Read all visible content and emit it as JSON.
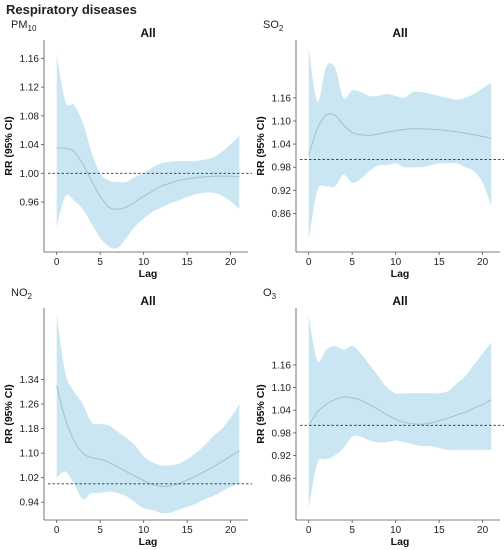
{
  "figure_title": "Respiratory diseases",
  "colors": {
    "band": "#c9e6f2",
    "line": "#9fc3d2",
    "ref": "#333333",
    "axis": "#555555"
  },
  "chart_data": [
    {
      "type": "line",
      "pollutant": "PM",
      "pollutant_sub": "10",
      "title": "All",
      "xlabel": "Lag",
      "ylabel": "RR (95% CI)",
      "xlim": [
        -1,
        22
      ],
      "ylim": [
        0.896,
        1.18
      ],
      "xticks": [
        0,
        5,
        10,
        15,
        20
      ],
      "yticks": [
        0.96,
        1.0,
        1.04,
        1.08,
        1.12,
        1.16
      ],
      "reference": 1.0,
      "x": [
        0,
        1,
        2,
        3,
        4,
        5,
        6,
        7,
        8,
        9,
        10,
        11,
        12,
        13,
        14,
        15,
        16,
        17,
        18,
        19,
        20,
        21
      ],
      "rr": [
        1.035,
        1.035,
        1.03,
        1.013,
        0.99,
        0.968,
        0.953,
        0.95,
        0.953,
        0.96,
        0.968,
        0.975,
        0.982,
        0.986,
        0.99,
        0.992,
        0.994,
        0.995,
        0.996,
        0.996,
        0.996,
        0.995
      ],
      "lower": [
        0.925,
        0.968,
        0.962,
        0.95,
        0.93,
        0.91,
        0.898,
        0.896,
        0.91,
        0.926,
        0.937,
        0.946,
        0.952,
        0.958,
        0.962,
        0.967,
        0.971,
        0.973,
        0.973,
        0.969,
        0.961,
        0.95
      ],
      "upper": [
        1.165,
        1.1,
        1.095,
        1.07,
        1.03,
        1.0,
        0.99,
        0.988,
        0.988,
        0.995,
        1.0,
        1.008,
        1.014,
        1.016,
        1.017,
        1.017,
        1.017,
        1.019,
        1.022,
        1.03,
        1.04,
        1.052
      ]
    },
    {
      "type": "line",
      "pollutant": "SO",
      "pollutant_sub": "2",
      "title": "All",
      "xlabel": "Lag",
      "ylabel": "RR (95% CI)",
      "xlim": [
        -1,
        22
      ],
      "ylim": [
        0.77,
        1.3
      ],
      "xticks": [
        0,
        5,
        10,
        15,
        20
      ],
      "yticks": [
        0.86,
        0.92,
        0.98,
        1.04,
        1.1,
        1.16
      ],
      "reference": 1.0,
      "x": [
        0,
        1,
        2,
        3,
        4,
        5,
        6,
        7,
        8,
        9,
        10,
        11,
        12,
        13,
        14,
        15,
        16,
        17,
        18,
        19,
        20,
        21
      ],
      "rr": [
        1.01,
        1.08,
        1.115,
        1.115,
        1.09,
        1.07,
        1.064,
        1.063,
        1.066,
        1.071,
        1.075,
        1.078,
        1.08,
        1.08,
        1.079,
        1.077,
        1.075,
        1.072,
        1.068,
        1.064,
        1.06,
        1.055
      ],
      "lower": [
        0.79,
        0.92,
        0.93,
        0.93,
        0.96,
        0.94,
        0.95,
        0.97,
        0.985,
        0.985,
        0.99,
        0.98,
        0.98,
        0.98,
        0.985,
        0.99,
        0.99,
        0.99,
        0.98,
        0.97,
        0.94,
        0.88
      ],
      "upper": [
        1.29,
        1.15,
        1.24,
        1.24,
        1.16,
        1.18,
        1.175,
        1.165,
        1.165,
        1.17,
        1.165,
        1.16,
        1.175,
        1.175,
        1.17,
        1.165,
        1.16,
        1.155,
        1.16,
        1.17,
        1.185,
        1.2
      ]
    },
    {
      "type": "line",
      "pollutant": "NO",
      "pollutant_sub": "2",
      "title": "All",
      "xlabel": "Lag",
      "ylabel": "RR (95% CI)",
      "xlim": [
        -1,
        22
      ],
      "ylim": [
        0.895,
        1.56
      ],
      "xticks": [
        0,
        5,
        10,
        15,
        20
      ],
      "yticks": [
        0.94,
        1.02,
        1.1,
        1.18,
        1.26,
        1.34
      ],
      "reference": 1.0,
      "x": [
        0,
        1,
        2,
        3,
        4,
        5,
        6,
        7,
        8,
        9,
        10,
        11,
        12,
        13,
        14,
        15,
        16,
        17,
        18,
        19,
        20,
        21
      ],
      "rr": [
        1.32,
        1.21,
        1.14,
        1.1,
        1.085,
        1.08,
        1.07,
        1.055,
        1.04,
        1.025,
        1.01,
        0.998,
        0.992,
        0.993,
        1.0,
        1.012,
        1.025,
        1.04,
        1.055,
        1.072,
        1.09,
        1.108
      ],
      "lower": [
        1.02,
        1.04,
        1.0,
        0.95,
        0.97,
        0.97,
        0.975,
        0.97,
        0.96,
        0.94,
        0.92,
        0.915,
        0.905,
        0.905,
        0.915,
        0.925,
        0.935,
        0.95,
        0.96,
        0.975,
        0.99,
        1.0
      ],
      "upper": [
        1.55,
        1.36,
        1.3,
        1.26,
        1.2,
        1.195,
        1.19,
        1.17,
        1.15,
        1.125,
        1.09,
        1.07,
        1.06,
        1.06,
        1.065,
        1.08,
        1.1,
        1.125,
        1.155,
        1.18,
        1.215,
        1.26
      ]
    },
    {
      "type": "line",
      "pollutant": "O",
      "pollutant_sub": "3",
      "title": "All",
      "xlabel": "Lag",
      "ylabel": "RR (95% CI)",
      "xlim": [
        -1,
        22
      ],
      "ylim": [
        0.76,
        1.3
      ],
      "xticks": [
        0,
        5,
        10,
        15,
        20
      ],
      "yticks": [
        0.86,
        0.92,
        0.98,
        1.04,
        1.1,
        1.16
      ],
      "reference": 1.0,
      "x": [
        0,
        1,
        2,
        3,
        4,
        5,
        6,
        7,
        8,
        9,
        10,
        11,
        12,
        13,
        14,
        15,
        16,
        17,
        18,
        19,
        20,
        21
      ],
      "rr": [
        1.0,
        1.035,
        1.055,
        1.068,
        1.075,
        1.073,
        1.066,
        1.055,
        1.042,
        1.028,
        1.016,
        1.008,
        1.004,
        1.003,
        1.006,
        1.012,
        1.019,
        1.027,
        1.035,
        1.045,
        1.055,
        1.068
      ],
      "lower": [
        0.78,
        0.9,
        0.91,
        0.92,
        0.94,
        0.97,
        0.97,
        0.96,
        0.955,
        0.955,
        0.96,
        0.955,
        0.95,
        0.945,
        0.945,
        0.94,
        0.935,
        0.935,
        0.935,
        0.935,
        0.935,
        0.935
      ],
      "upper": [
        1.29,
        1.17,
        1.2,
        1.21,
        1.2,
        1.21,
        1.19,
        1.16,
        1.13,
        1.1,
        1.085,
        1.085,
        1.085,
        1.085,
        1.085,
        1.085,
        1.09,
        1.11,
        1.13,
        1.16,
        1.19,
        1.22
      ]
    }
  ]
}
